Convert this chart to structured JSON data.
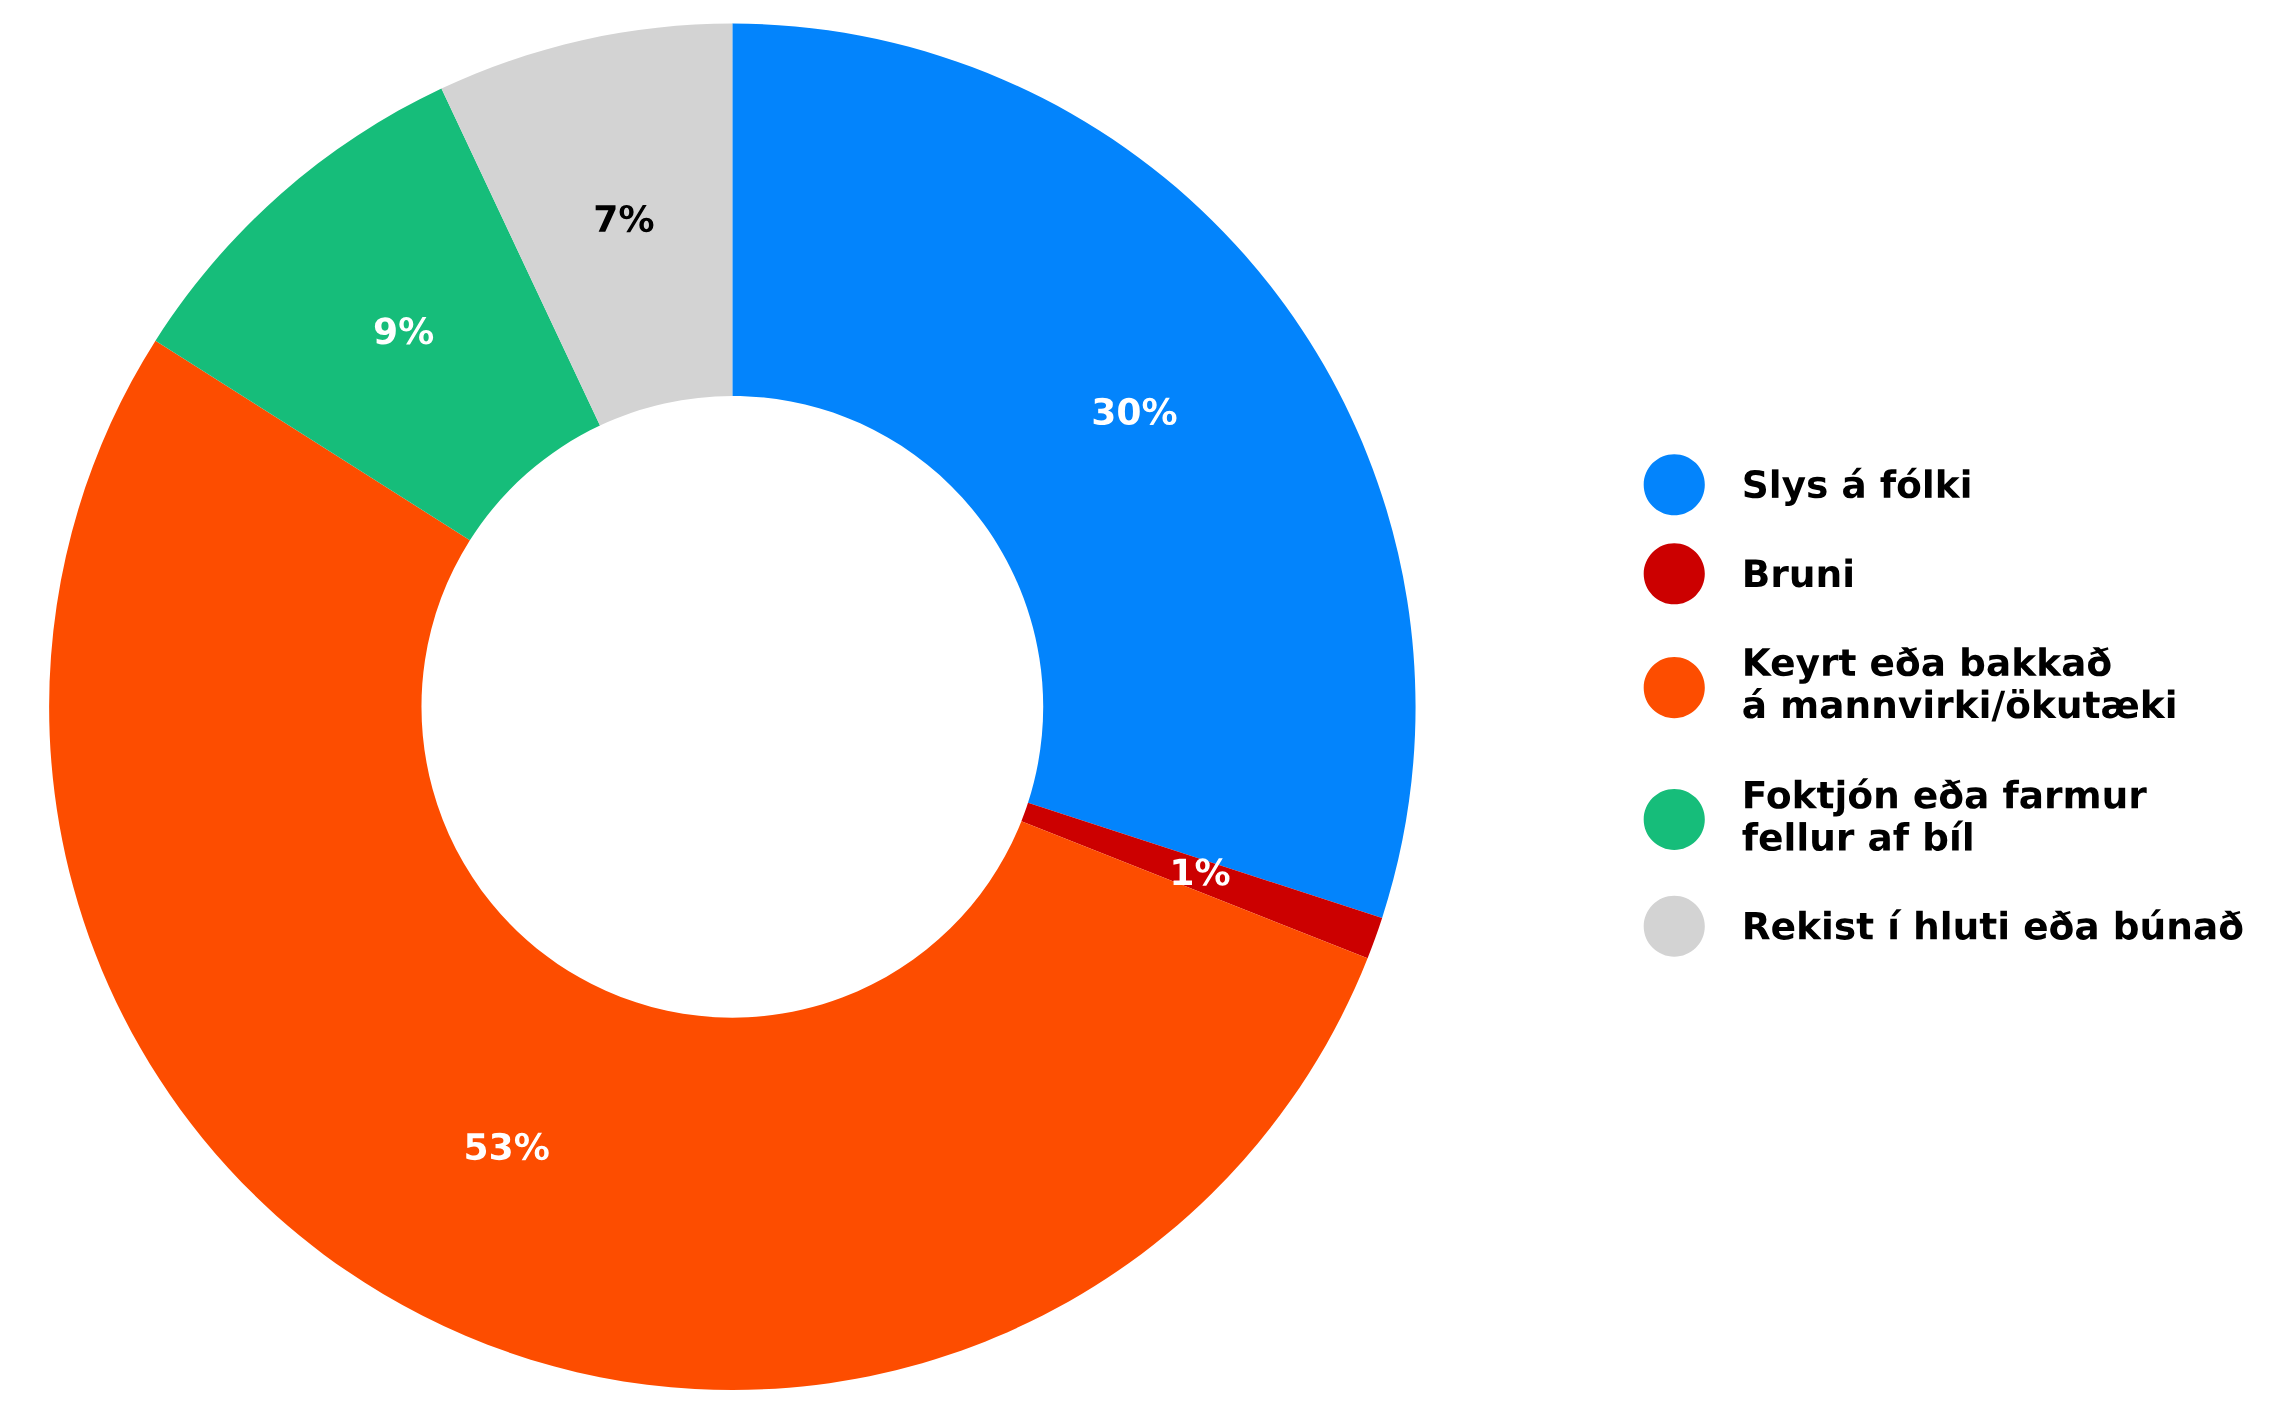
{
  "chart_data": {
    "type": "donut",
    "categories": [
      "Slys á fólki",
      "Bruni",
      "Keyrt eða bakkað\ná mannvirki/ökutæki",
      "Foktjón eða farmur\nfellur af bíl",
      "Rekist í hluti eða búnað"
    ],
    "values": [
      30,
      1,
      53,
      9,
      7
    ],
    "colors": [
      "#0384fc",
      "#cc0000",
      "#fd4d00",
      "#16bd7a",
      "#d3d3d3"
    ],
    "value_labels": [
      "30%",
      "1%",
      "53%",
      "9%",
      "7%"
    ],
    "legend": "right"
  }
}
